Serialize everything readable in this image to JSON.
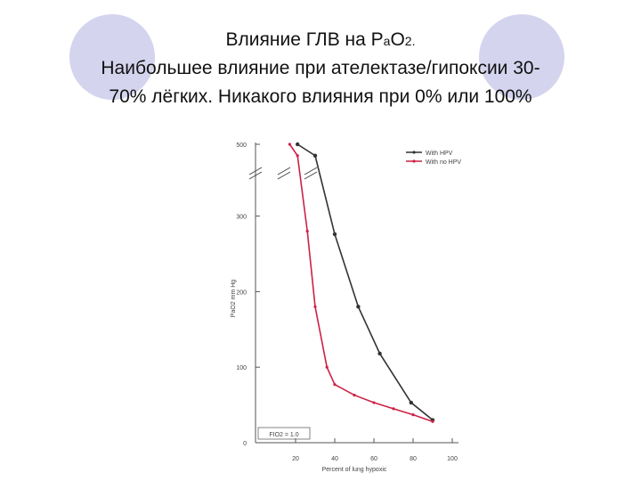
{
  "slide": {
    "title_main": "Влияние ГЛВ на P",
    "title_sub_a": "a",
    "title_o": "O",
    "title_sub_2": "2.",
    "line2": "Наибольшее влияние  при ателектазе/гипоксии 30-",
    "line3": "70% лёгких.  Никакого влияния при 0% или 100%"
  },
  "chart_data": {
    "type": "line",
    "xlabel": "Percent of lung hypoxic",
    "ylabel": "PaO2 mm Hg",
    "x_ticks": [
      "20",
      "40",
      "60",
      "80",
      "100"
    ],
    "y_ticks": [
      "0",
      "100",
      "200",
      "300",
      "500"
    ],
    "xlim": [
      10,
      100
    ],
    "ylim_lower": [
      0,
      360
    ],
    "y_break": "axis broken between 300 and 500",
    "annotation": "FIO2 = 1.0",
    "legend_position": "top-right",
    "series": [
      {
        "name": "With HPV",
        "color": "#333333",
        "points": [
          [
            21,
            510
          ],
          [
            30,
            380
          ],
          [
            40,
            276
          ],
          [
            52,
            180
          ],
          [
            63,
            118
          ],
          [
            79,
            53
          ],
          [
            90,
            30
          ]
        ]
      },
      {
        "name": "With no HPV",
        "color": "#cc2244",
        "points": [
          [
            17,
            505
          ],
          [
            21,
            380
          ],
          [
            26,
            280
          ],
          [
            30,
            180
          ],
          [
            36,
            100
          ],
          [
            40,
            77
          ],
          [
            50,
            63
          ],
          [
            60,
            53
          ],
          [
            70,
            45
          ],
          [
            80,
            37
          ],
          [
            90,
            28
          ]
        ]
      }
    ]
  }
}
